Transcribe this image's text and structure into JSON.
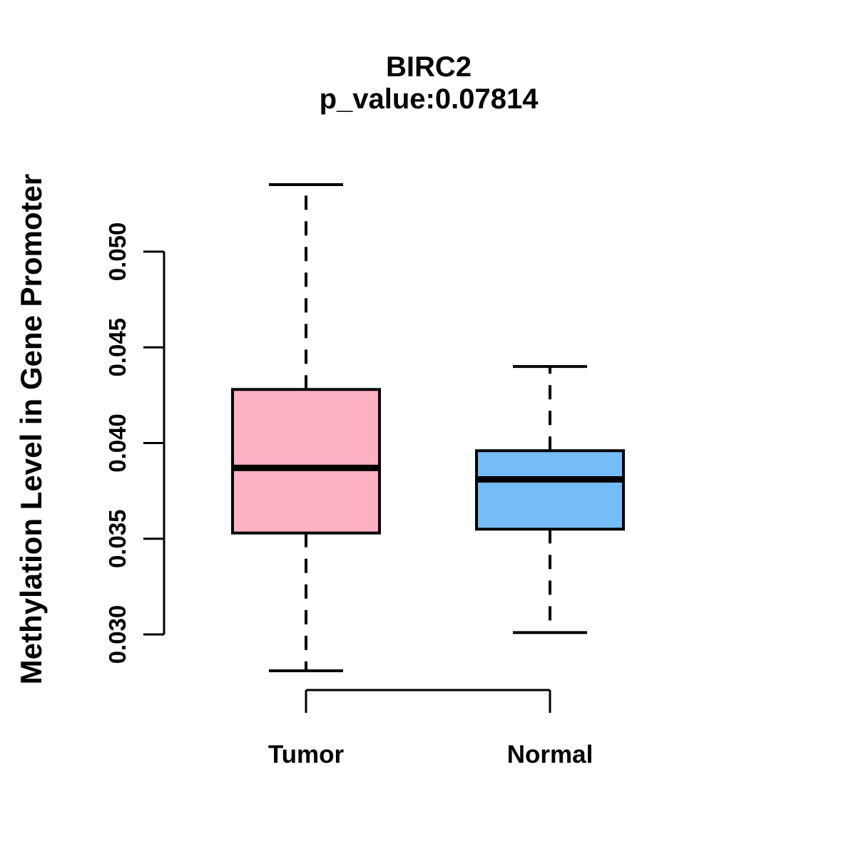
{
  "chart_data": {
    "type": "boxplot",
    "title": "BIRC2",
    "subtitle": "p_value:0.07814",
    "ylabel": "Methylation Level in Gene Promoter",
    "xlabel": "",
    "categories": [
      "Tumor",
      "Normal"
    ],
    "ylim": [
      0.03,
      0.05
    ],
    "y_ticks": [
      0.05,
      0.045,
      0.04,
      0.035,
      0.03
    ],
    "y_tick_labels": [
      "0.050",
      "0.045",
      "0.040",
      "0.035",
      "0.030"
    ],
    "grid": false,
    "legend": "none",
    "whisker_line_style": "dashed",
    "box_border_color": "#000000",
    "median_color": "#000000",
    "series": [
      {
        "name": "Tumor",
        "fill_color": "#FFB1C4",
        "whisker_low": 0.0281,
        "q1": 0.0353,
        "median": 0.0387,
        "q3": 0.0428,
        "whisker_high": 0.0535
      },
      {
        "name": "Normal",
        "fill_color": "#74BDF6",
        "whisker_low": 0.0301,
        "q1": 0.0355,
        "median": 0.0381,
        "q3": 0.0396,
        "whisker_high": 0.044
      }
    ]
  }
}
